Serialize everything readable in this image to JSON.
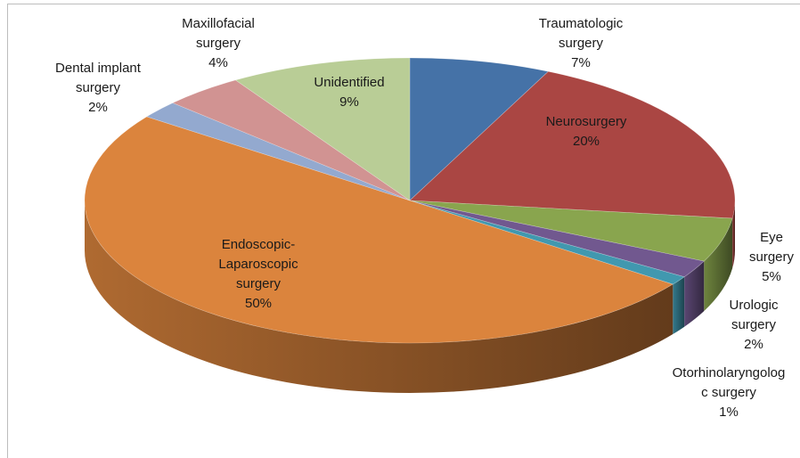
{
  "chart_data": {
    "type": "pie",
    "three_d": true,
    "categories": [
      "Traumatologic\nsurgery",
      "Neurosurgery",
      "Eye\nsurgery",
      "Urologic\nsurgery",
      "Otorhinolaryngolog\nc surgery",
      "Endoscopic-\nLaparoscopic\nsurgery",
      "Dental implant\nsurgery",
      "Maxillofacial\nsurgery",
      "Unidentified"
    ],
    "values": [
      7,
      20,
      5,
      2,
      1,
      50,
      2,
      4,
      9
    ],
    "value_labels": [
      "7%",
      "20%",
      "5%",
      "2%",
      "1%",
      "50%",
      "2%",
      "4%",
      "9%"
    ],
    "colors": [
      "#4572a7",
      "#aa4643",
      "#89a54e",
      "#71588f",
      "#4198af",
      "#db843d",
      "#93a9cf",
      "#d19392",
      "#b9cd96"
    ]
  }
}
